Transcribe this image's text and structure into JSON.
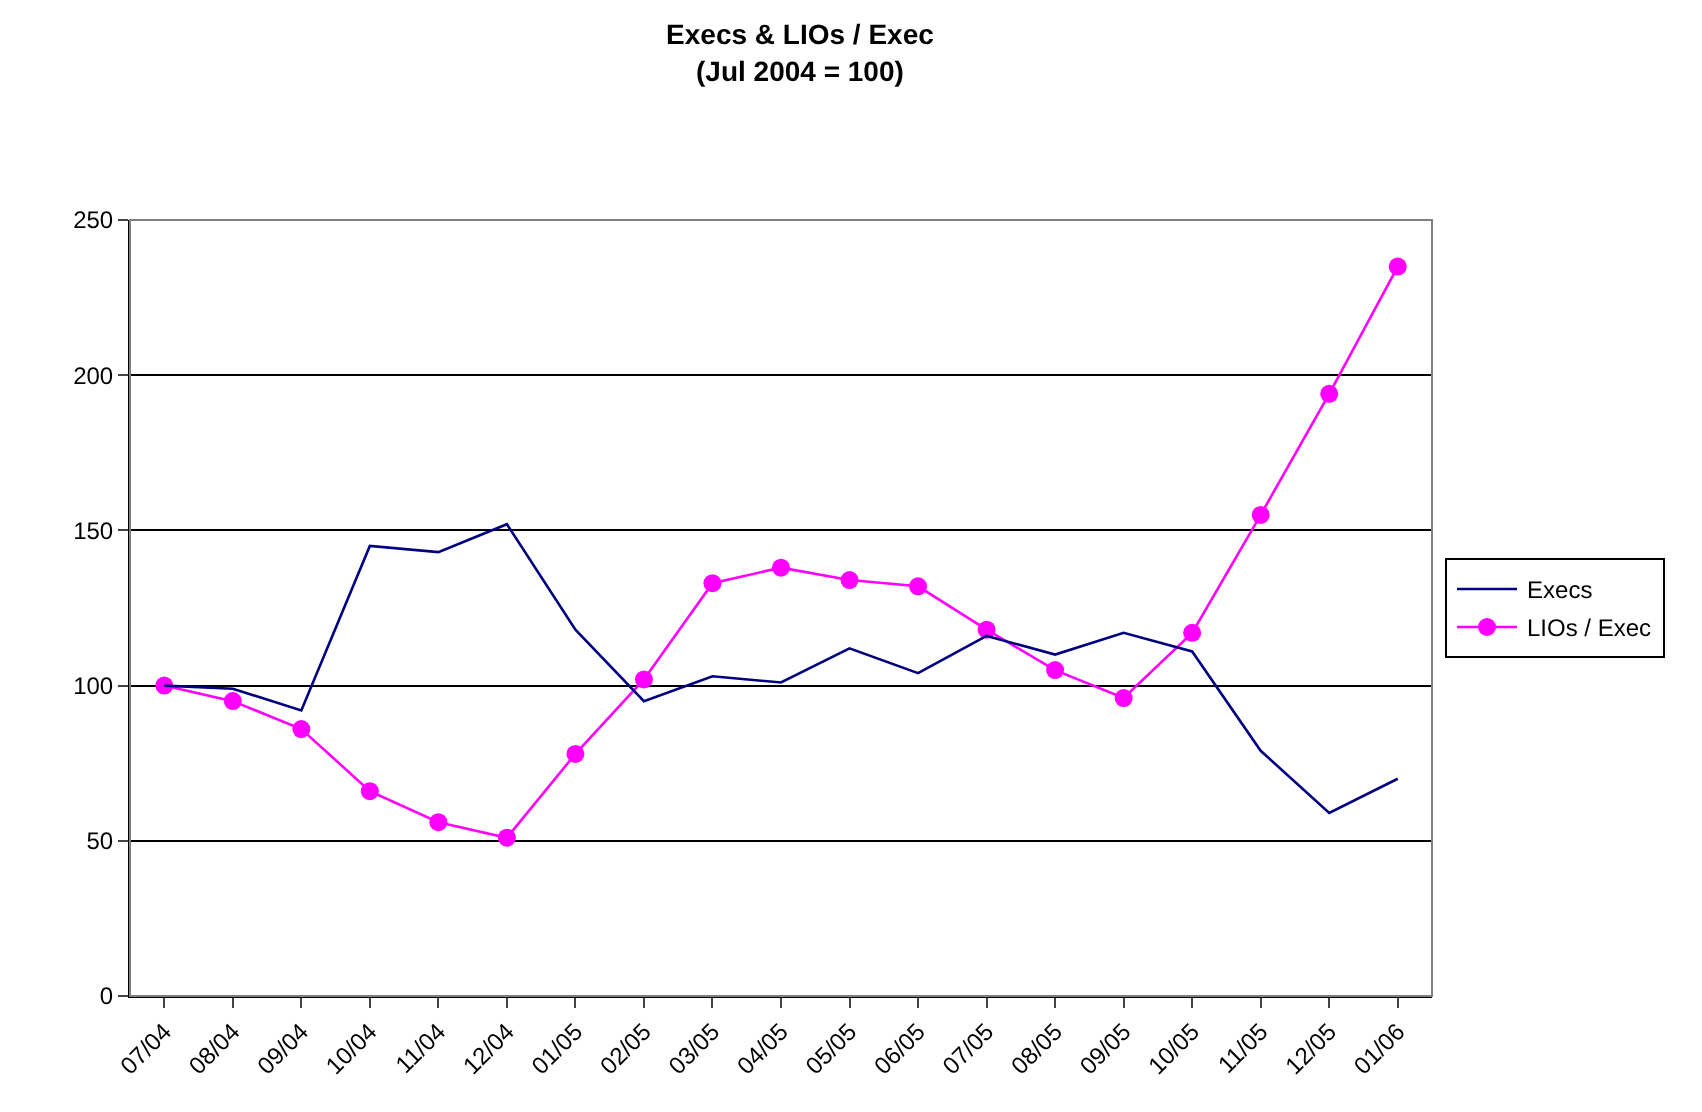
{
  "chart_data": {
    "type": "line",
    "title": "Execs & LIOs / Exec",
    "subtitle": "(Jul 2004 = 100)",
    "categories": [
      "07/04",
      "08/04",
      "09/04",
      "10/04",
      "11/04",
      "12/04",
      "01/05",
      "02/05",
      "03/05",
      "04/05",
      "05/05",
      "06/05",
      "07/05",
      "08/05",
      "09/05",
      "10/05",
      "11/05",
      "12/05",
      "01/06"
    ],
    "series": [
      {
        "name": "Execs",
        "color": "#000080",
        "marker": "none",
        "values": [
          100,
          99,
          92,
          145,
          143,
          152,
          118,
          95,
          103,
          101,
          112,
          104,
          116,
          110,
          117,
          111,
          79,
          59,
          70
        ]
      },
      {
        "name": "LIOs / Exec",
        "color": "#ff00ff",
        "marker": "circle",
        "values": [
          100,
          95,
          86,
          66,
          56,
          51,
          78,
          102,
          133,
          138,
          134,
          132,
          118,
          105,
          96,
          117,
          155,
          194,
          235
        ]
      }
    ],
    "ylim": [
      0,
      250
    ],
    "yticks": [
      0,
      50,
      100,
      150,
      200,
      250
    ],
    "grid": "y",
    "legend": "right"
  }
}
